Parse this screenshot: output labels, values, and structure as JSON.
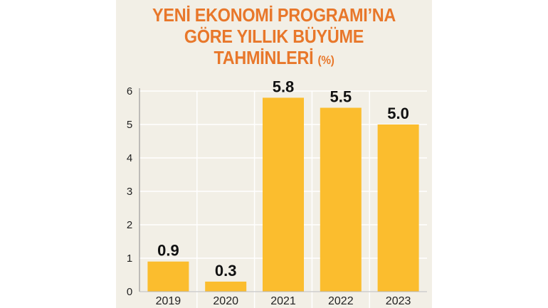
{
  "title": {
    "line1": "YENİ EKONOMİ PROGRAMI’NA",
    "line2": "GÖRE YILLIK BÜYÜME",
    "line3": "TAHMİNLERİ",
    "unit": "(%)"
  },
  "colors": {
    "bar": "#fbbd2e",
    "title": "#e8772a",
    "panel": "#f2efe6"
  },
  "chart_data": {
    "type": "bar",
    "title": "YENİ EKONOMİ PROGRAMI’NA GÖRE YILLIK BÜYÜME TAHMİNLERİ (%)",
    "categories": [
      "2019",
      "2020",
      "2021",
      "2022",
      "2023"
    ],
    "values": [
      0.9,
      0.3,
      5.8,
      5.5,
      5.0
    ],
    "value_labels": [
      "0.9",
      "0.3",
      "5.8",
      "5.5",
      "5.0"
    ],
    "yticks": [
      "0",
      "1",
      "2",
      "3",
      "4",
      "5",
      "6"
    ],
    "ylim": [
      0,
      6
    ],
    "xlabel": "",
    "ylabel": "",
    "grid": true
  }
}
